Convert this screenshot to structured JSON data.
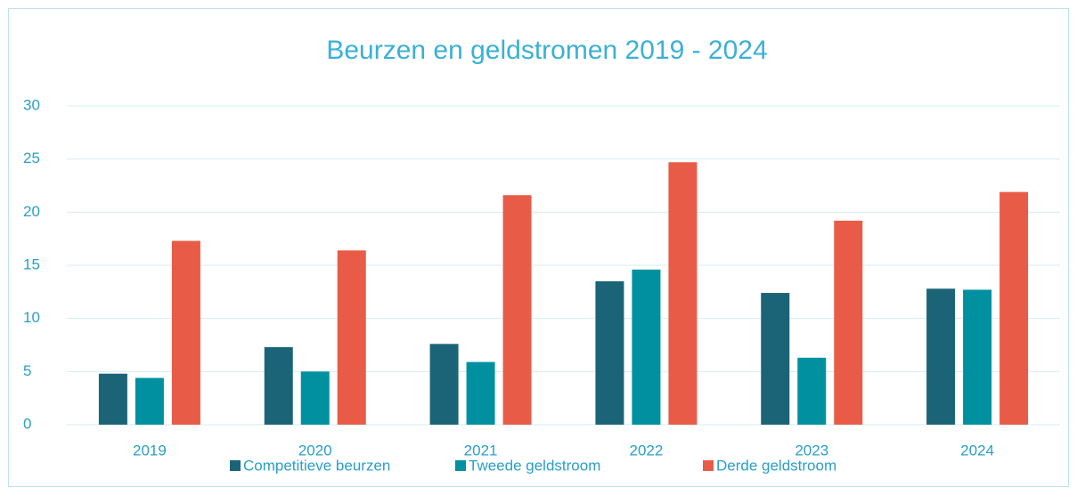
{
  "chart_data": {
    "type": "bar",
    "title": "Beurzen en geldstromen 2019 - 2024",
    "categories": [
      "2019",
      "2020",
      "2021",
      "2022",
      "2023",
      "2024"
    ],
    "series": [
      {
        "name": "Competitieve beurzen",
        "color": "#1b6478",
        "values": [
          4.8,
          7.3,
          7.6,
          13.5,
          12.4,
          12.8
        ]
      },
      {
        "name": "Tweede geldstroom",
        "color": "#0090a0",
        "values": [
          4.4,
          5.0,
          5.9,
          14.6,
          6.3,
          12.7
        ]
      },
      {
        "name": "Derde geldstroom",
        "color": "#e85c47",
        "values": [
          17.3,
          16.4,
          21.6,
          24.7,
          19.2,
          21.9
        ]
      }
    ],
    "ylim": [
      0,
      30
    ],
    "yticks": [
      0,
      5,
      10,
      15,
      20,
      25,
      30
    ],
    "grid": true,
    "legend": "bottom"
  }
}
